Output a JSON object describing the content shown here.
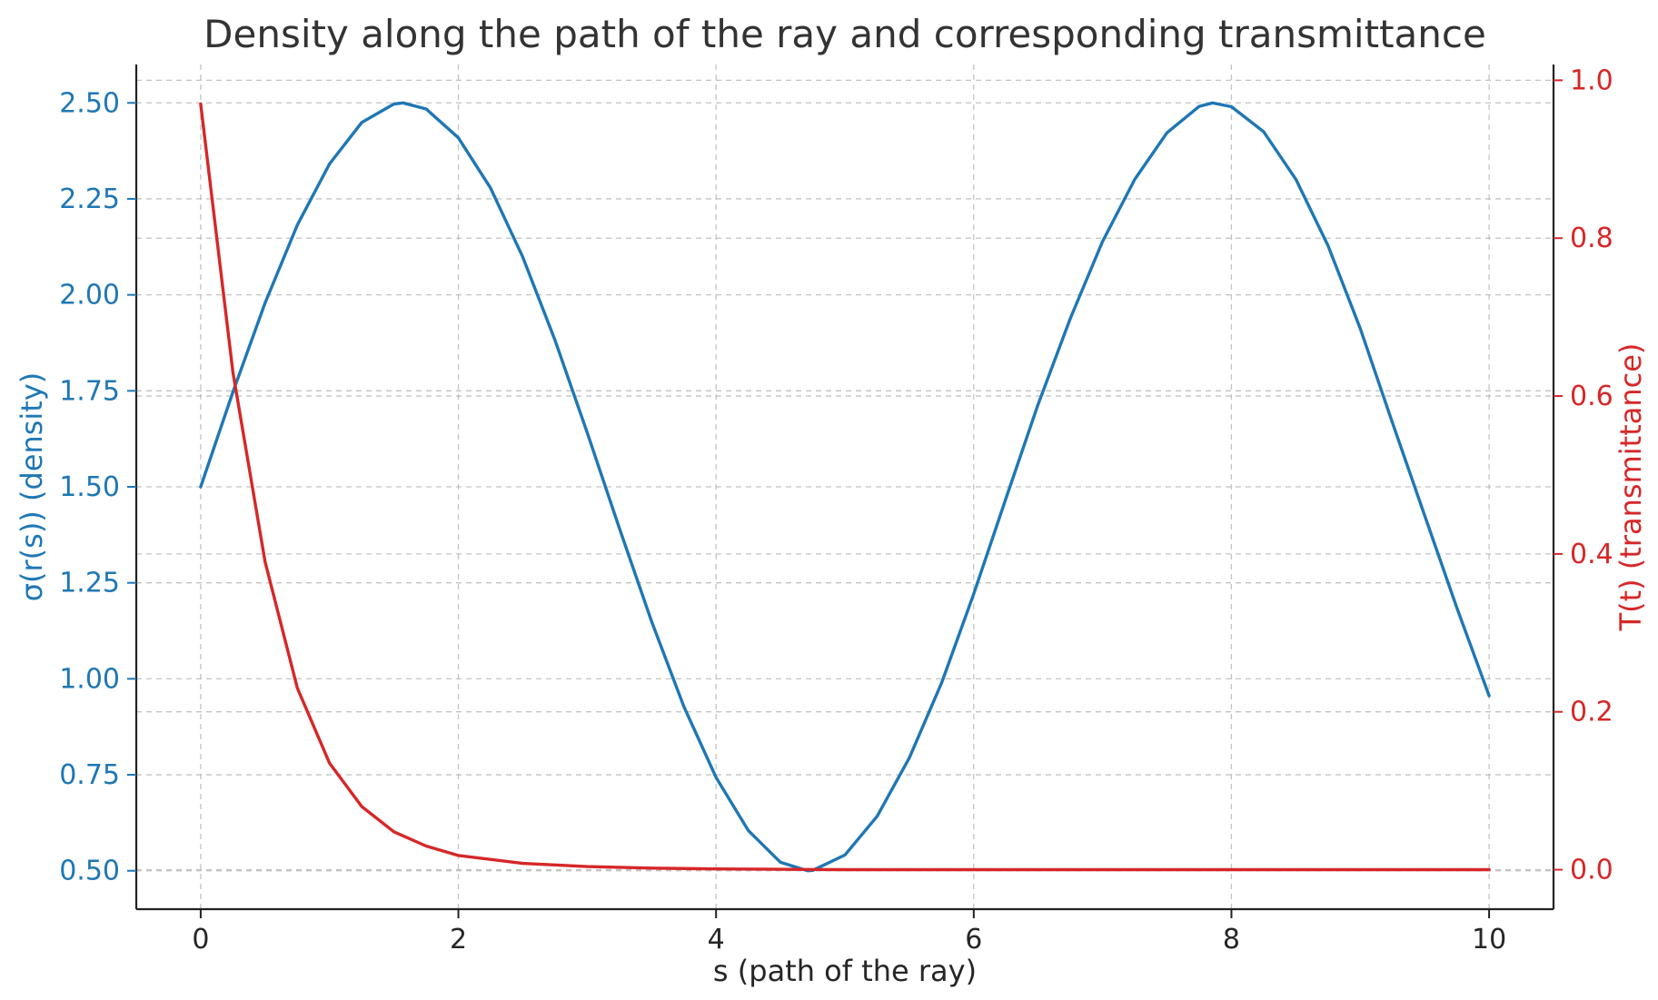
{
  "chart_data": {
    "type": "line",
    "title": "Density along the path of the ray and corresponding transmittance",
    "xlabel": "s (path of the ray)",
    "xlim": [
      -0.5,
      10.5
    ],
    "xticks": [
      0,
      2,
      4,
      6,
      8,
      10
    ],
    "xtick_labels": [
      "0",
      "2",
      "4",
      "6",
      "8",
      "10"
    ],
    "grid": true,
    "left_axis": {
      "ylabel": "σ(r(s)) (density)",
      "color": "#1f77b4",
      "ylim": [
        0.4,
        2.6
      ],
      "yticks": [
        0.5,
        0.75,
        1.0,
        1.25,
        1.5,
        1.75,
        2.0,
        2.25,
        2.5
      ],
      "ytick_labels": [
        "0.50",
        "0.75",
        "1.00",
        "1.25",
        "1.50",
        "1.75",
        "2.00",
        "2.25",
        "2.50"
      ]
    },
    "right_axis": {
      "ylabel": "T(t) (transmittance)",
      "color": "#d62728",
      "ylim": [
        -0.05,
        1.02
      ],
      "yticks": [
        0.0,
        0.2,
        0.4,
        0.6,
        0.8,
        1.0
      ],
      "ytick_labels": [
        "0.0",
        "0.2",
        "0.4",
        "0.6",
        "0.8",
        "1.0"
      ]
    },
    "series": [
      {
        "axis": "left",
        "color": "#1f77b4",
        "x": [
          0,
          0.25,
          0.5,
          0.75,
          1.0,
          1.25,
          1.5,
          1.571,
          1.75,
          2.0,
          2.25,
          2.5,
          2.75,
          3.0,
          3.25,
          3.5,
          3.75,
          4.0,
          4.25,
          4.5,
          4.712,
          4.75,
          5.0,
          5.25,
          5.5,
          5.75,
          6.0,
          6.25,
          6.5,
          6.75,
          7.0,
          7.25,
          7.5,
          7.75,
          7.854,
          8.0,
          8.25,
          8.5,
          8.75,
          9.0,
          9.25,
          9.5,
          9.75,
          10.0
        ],
        "y": [
          1.5,
          1.747,
          1.979,
          2.182,
          2.341,
          2.449,
          2.497,
          2.5,
          2.484,
          2.409,
          2.278,
          2.098,
          1.882,
          1.641,
          1.392,
          1.149,
          0.928,
          0.743,
          0.605,
          0.522,
          0.5,
          0.501,
          0.541,
          0.642,
          0.794,
          0.989,
          1.221,
          1.47,
          1.715,
          1.939,
          2.139,
          2.301,
          2.422,
          2.491,
          2.5,
          2.49,
          2.425,
          2.301,
          2.128,
          1.912,
          1.667,
          1.425,
          1.185,
          0.956
        ]
      },
      {
        "axis": "right",
        "color": "#d62728",
        "x": [
          0,
          0.25,
          0.5,
          0.75,
          1.0,
          1.25,
          1.5,
          1.75,
          2.0,
          2.5,
          3.0,
          3.5,
          4.0,
          4.5,
          5.0,
          6.0,
          7.0,
          8.0,
          9.0,
          10.0
        ],
        "y": [
          0.97,
          0.63,
          0.39,
          0.23,
          0.135,
          0.08,
          0.048,
          0.03,
          0.018,
          0.008,
          0.004,
          0.002,
          0.001,
          0.0005,
          0.0,
          0.0,
          0.0,
          0.0,
          0.0,
          0.0
        ]
      }
    ]
  }
}
